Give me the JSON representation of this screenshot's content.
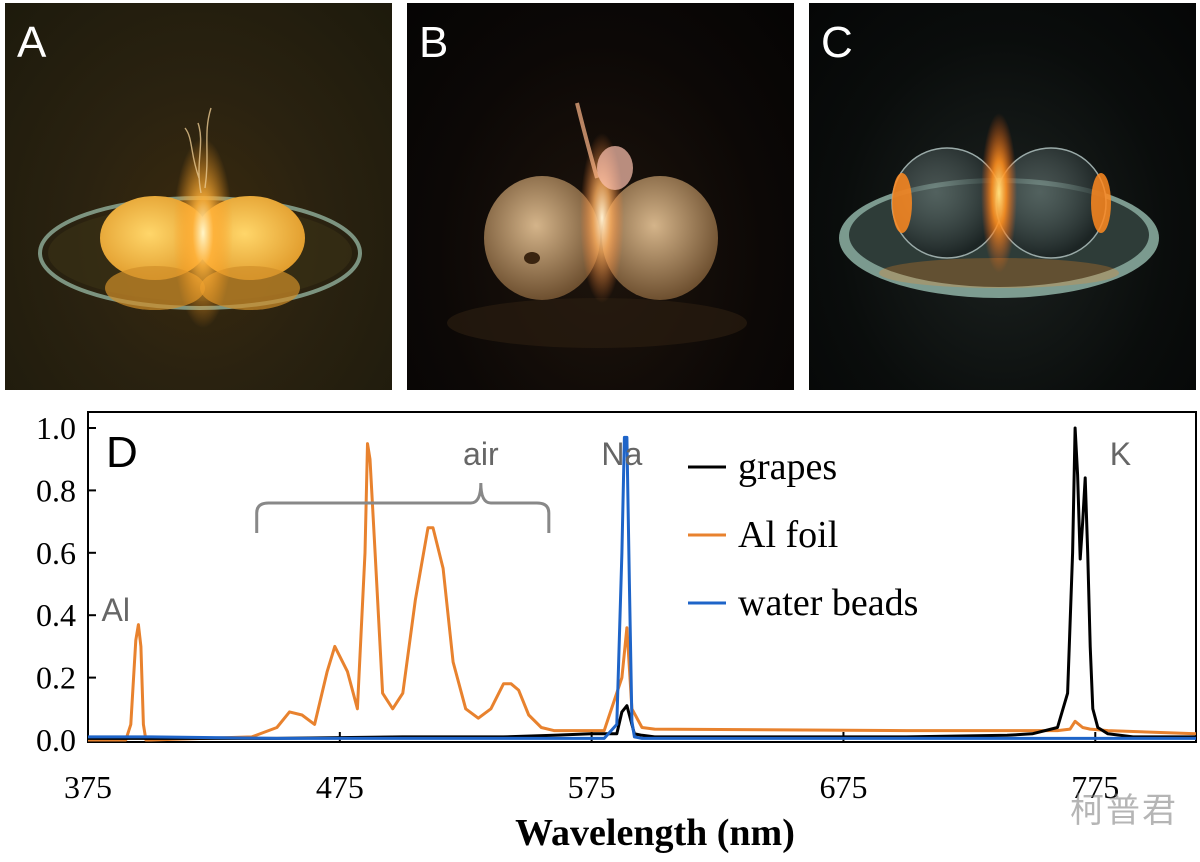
{
  "panels": [
    {
      "letter": "A"
    },
    {
      "letter": "B"
    },
    {
      "letter": "C"
    }
  ],
  "watermark": "柯普君",
  "chart_data": {
    "type": "line",
    "panel_letter": "D",
    "xlabel": "Wavelength (nm)",
    "ylabel": "",
    "xlim": [
      375,
      815
    ],
    "ylim": [
      0,
      1.0
    ],
    "x_ticks": [
      375,
      475,
      575,
      675,
      775
    ],
    "y_ticks": [
      "0.0",
      "0.2",
      "0.4",
      "0.6",
      "0.8",
      "1.0"
    ],
    "grid": false,
    "legend_position": "top-right",
    "annotations": [
      {
        "text": "Al",
        "x": 386,
        "y": 0.42
      },
      {
        "text": "air",
        "x": 531,
        "y": 0.92,
        "bracket_from": 442,
        "bracket_to": 558
      },
      {
        "text": "Na",
        "x": 587,
        "y": 0.92
      },
      {
        "text": "K",
        "x": 785,
        "y": 0.92
      }
    ],
    "series": [
      {
        "name": "grapes",
        "color": "#000000",
        "x": [
          375,
          400,
          450,
          500,
          540,
          560,
          575,
          585,
          587,
          589,
          590,
          592,
          595,
          600,
          650,
          700,
          740,
          750,
          760,
          764,
          766,
          767,
          768,
          769,
          770,
          771,
          772,
          773,
          774,
          776,
          778,
          780,
          790,
          815
        ],
        "y": [
          0.005,
          0.005,
          0.005,
          0.01,
          0.01,
          0.015,
          0.02,
          0.02,
          0.09,
          0.11,
          0.08,
          0.02,
          0.015,
          0.01,
          0.01,
          0.01,
          0.015,
          0.02,
          0.04,
          0.15,
          0.6,
          1.0,
          0.85,
          0.58,
          0.7,
          0.84,
          0.6,
          0.3,
          0.1,
          0.04,
          0.03,
          0.02,
          0.01,
          0.01
        ]
      },
      {
        "name": "Al foil",
        "color": "#e8822e",
        "x": [
          375,
          390,
          392,
          394,
          395,
          396,
          397,
          398,
          400,
          440,
          450,
          455,
          460,
          465,
          470,
          473,
          478,
          482,
          485,
          486,
          487,
          489,
          492,
          496,
          500,
          505,
          510,
          512,
          516,
          520,
          525,
          530,
          535,
          540,
          543,
          546,
          550,
          555,
          560,
          580,
          587,
          589,
          591,
          595,
          600,
          700,
          760,
          765,
          767,
          770,
          773,
          780,
          815
        ],
        "y": [
          0.0,
          0.0,
          0.05,
          0.32,
          0.37,
          0.3,
          0.05,
          0.0,
          0.0,
          0.01,
          0.04,
          0.09,
          0.08,
          0.05,
          0.22,
          0.3,
          0.22,
          0.1,
          0.6,
          0.95,
          0.9,
          0.6,
          0.15,
          0.1,
          0.15,
          0.45,
          0.68,
          0.68,
          0.55,
          0.25,
          0.1,
          0.07,
          0.1,
          0.18,
          0.18,
          0.16,
          0.08,
          0.04,
          0.03,
          0.03,
          0.2,
          0.36,
          0.1,
          0.04,
          0.035,
          0.03,
          0.03,
          0.035,
          0.06,
          0.04,
          0.035,
          0.03,
          0.02
        ]
      },
      {
        "name": "water beads",
        "color": "#1e64c8",
        "x": [
          375,
          400,
          450,
          500,
          550,
          580,
          585,
          587,
          588,
          589,
          590,
          591,
          592,
          595,
          600,
          650,
          700,
          750,
          770,
          780,
          800,
          815
        ],
        "y": [
          0.01,
          0.01,
          0.005,
          0.005,
          0.005,
          0.005,
          0.05,
          0.6,
          0.97,
          0.97,
          0.5,
          0.06,
          0.01,
          0.005,
          0.005,
          0.005,
          0.005,
          0.005,
          0.005,
          0.005,
          0.005,
          0.005
        ]
      }
    ]
  }
}
